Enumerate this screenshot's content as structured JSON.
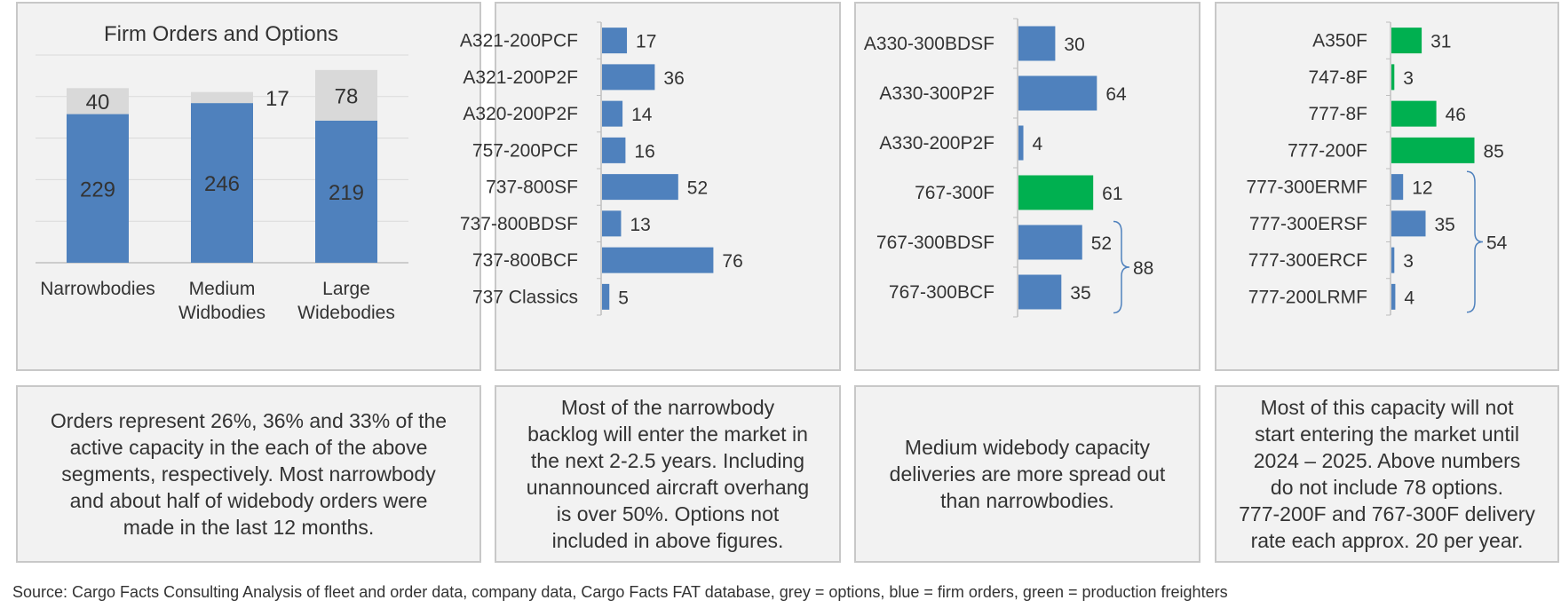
{
  "colors": {
    "options": "#d9d9d9",
    "firm": "#4f81bd",
    "production": "#00b050",
    "brace": "#4f81bd",
    "panel_bg": "#f2f2f2",
    "border": "#c8c8c8",
    "gridline": "#d9d9d9"
  },
  "chart_data": [
    {
      "type": "bar",
      "stacked": true,
      "title": "Firm Orders and Options",
      "categories": [
        "Narrowbodies",
        "Medium Widbodies",
        "Large Widebodies"
      ],
      "category_lines": [
        [
          "Narrowbodies"
        ],
        [
          "Medium",
          "Widbodies"
        ],
        [
          "Large",
          "Widebodies"
        ]
      ],
      "series": [
        {
          "color": "firm",
          "values": [
            229,
            246,
            219
          ]
        },
        {
          "color": "options",
          "values": [
            40,
            17,
            78
          ]
        }
      ],
      "ylim": [
        0,
        320
      ],
      "grid": true
    },
    {
      "type": "bar",
      "orientation": "horizontal",
      "categories": [
        "A321-200PCF",
        "A321-200P2F",
        "A320-200P2F",
        "757-200PCF",
        "737-800SF",
        "737-800BDSF",
        "737-800BCF",
        "737 Classics"
      ],
      "values": [
        17,
        36,
        14,
        16,
        52,
        13,
        76,
        5
      ],
      "colors": [
        "firm",
        "firm",
        "firm",
        "firm",
        "firm",
        "firm",
        "firm",
        "firm"
      ],
      "xlim": [
        0,
        100
      ]
    },
    {
      "type": "bar",
      "orientation": "horizontal",
      "categories": [
        "A330-300BDSF",
        "A330-300P2F",
        "A330-200P2F",
        "767-300F",
        "767-300BDSF",
        "767-300BCF"
      ],
      "values": [
        30,
        64,
        4,
        61,
        52,
        35
      ],
      "colors": [
        "firm",
        "firm",
        "firm",
        "production",
        "firm",
        "firm"
      ],
      "xlim": [
        0,
        100
      ],
      "brace": {
        "from": 4,
        "to": 5,
        "label": "88"
      }
    },
    {
      "type": "bar",
      "orientation": "horizontal",
      "categories": [
        "A350F",
        "747-8F",
        "777-8F",
        "777-200F",
        "777-300ERMF",
        "777-300ERSF",
        "777-300ERCF",
        "777-200LRMF"
      ],
      "values": [
        31,
        3,
        46,
        85,
        12,
        35,
        3,
        4
      ],
      "colors": [
        "production",
        "production",
        "production",
        "production",
        "firm",
        "firm",
        "firm",
        "firm"
      ],
      "xlim": [
        0,
        120
      ],
      "brace": {
        "from": 4,
        "to": 7,
        "label": "54"
      }
    }
  ],
  "notes": [
    [
      "Orders represent 26%, 36% and 33% of the",
      "active capacity in the each of the above",
      "segments, respectively. Most narrowbody",
      "and about half of widebody orders were",
      "made in the last 12 months."
    ],
    [
      "Most of the narrowbody",
      "backlog will enter the market in",
      "the next 2-2.5 years. Including",
      "unannounced aircraft overhang",
      "is over 50%. Options not",
      "included in above figures."
    ],
    [
      "Medium widebody capacity",
      "deliveries are more spread out",
      "than narrowbodies."
    ],
    [
      "Most of this capacity will not",
      "start entering the market until",
      "2024 – 2025. Above numbers",
      "do not include 78 options.",
      "777-200F and 767-300F delivery",
      "rate each approx. 20 per year."
    ]
  ],
  "source": "Source: Cargo Facts Consulting Analysis of fleet and order data, company data, Cargo Facts FAT database, grey = options, blue = firm orders, green = production freighters"
}
